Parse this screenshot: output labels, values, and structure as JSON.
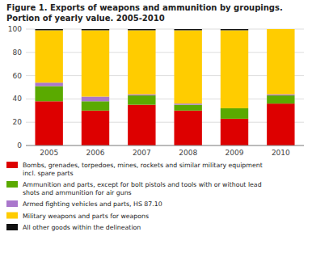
{
  "chart_data": {
    "type": "bar",
    "stacked": true,
    "title": "Figure 1. Exports of weapons and ammunition by groupings.",
    "subtitle": "Portion of yearly value. 2005-2010",
    "categories": [
      "2005",
      "2006",
      "2007",
      "2008",
      "2009",
      "2010"
    ],
    "series": [
      {
        "name": "Bombs, grenades, torpedoes, mines, rockets and similar military equipment\nincl. spare parts",
        "color": "#dd0000",
        "values": [
          38,
          30,
          35,
          30,
          23,
          36
        ]
      },
      {
        "name": "Ammunition and parts, except for bolt pistols and tools with or without lead\nshots and ammunition for air guns",
        "color": "#5aaa00",
        "values": [
          13,
          8,
          8,
          5,
          9,
          7
        ]
      },
      {
        "name": "Armed fighting vehicles and parts, HS 87.10",
        "color": "#aa77cc",
        "values": [
          3,
          4,
          1,
          1,
          0,
          1
        ]
      },
      {
        "name": "Military weapons and parts for weapons",
        "color": "#ffcc00",
        "values": [
          45,
          57,
          55,
          63,
          67,
          56
        ]
      },
      {
        "name": "All other goods within the delineation",
        "color": "#111111",
        "values": [
          1,
          1,
          1,
          1,
          1,
          0
        ]
      }
    ],
    "ylim": [
      0,
      100
    ],
    "yticks": [
      0,
      20,
      40,
      60,
      80,
      100
    ],
    "grid": true,
    "legend": "bottom"
  }
}
